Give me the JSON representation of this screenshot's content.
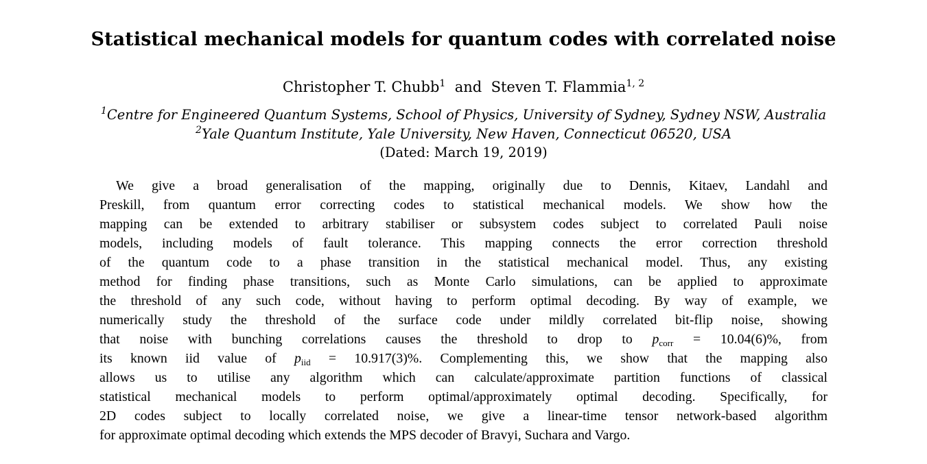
{
  "title": "Statistical mechanical models for quantum codes with correlated noise",
  "authors": {
    "author1": "Christopher T. Chubb",
    "author1_sup": "1",
    "conj": "and",
    "author2": "Steven T. Flammia",
    "author2_sup": "1, 2"
  },
  "affiliations": [
    {
      "mark": "1",
      "text": "Centre for Engineered Quantum Systems, School of Physics, University of Sydney, Sydney NSW, Australia"
    },
    {
      "mark": "2",
      "text": "Yale Quantum Institute, Yale University, New Haven, Connecticut 06520, USA"
    }
  ],
  "dated": "(Dated: March 19, 2019)",
  "abstract": {
    "l1": "We give a broad generalisation of the mapping, originally due to Dennis, Kitaev, Landahl and",
    "l2": "Preskill, from quantum error correcting codes to statistical mechanical models. We show how the",
    "l3": "mapping can be extended to arbitrary stabiliser or subsystem codes subject to correlated Pauli noise",
    "l4": "models, including models of fault tolerance. This mapping connects the error correction threshold",
    "l5": "of the quantum code to a phase transition in the statistical mechanical model. Thus, any existing",
    "l6": "method for finding phase transitions, such as Monte Carlo simulations, can be applied to approximate",
    "l7": "the threshold of any such code, without having to perform optimal decoding. By way of example, we",
    "l8": "numerically study the threshold of the surface code under mildly correlated bit-flip noise, showing",
    "l9_a": "that noise with bunching correlations causes the threshold to drop to",
    "l9_var": "p",
    "l9_sub": "corr",
    "l9_b": "= 10.04(6)%, from",
    "l10_a": "its known iid value of",
    "l10_var": "p",
    "l10_sub": "iid",
    "l10_b": "= 10.917(3)%. Complementing this, we show that the mapping also",
    "l11": "allows us to utilise any algorithm which can calculate/approximate partition functions of classical",
    "l12": "statistical mechanical models to perform optimal/approximately optimal decoding. Specifically, for",
    "l13": "2D codes subject to locally correlated noise, we give a linear-time tensor network-based algorithm",
    "l14": "for approximate optimal decoding which extends the MPS decoder of Bravyi, Suchara and Vargo."
  }
}
